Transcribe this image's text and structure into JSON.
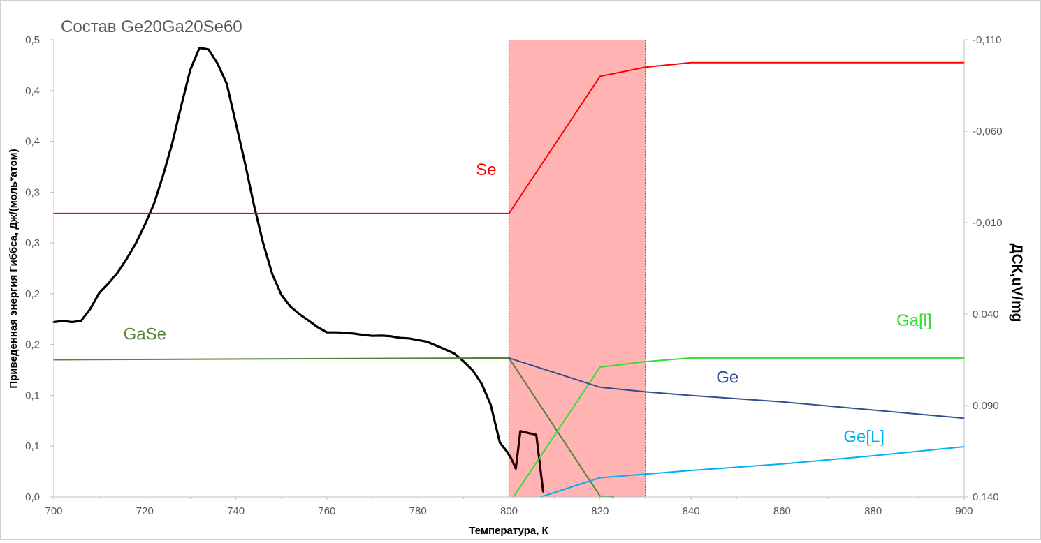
{
  "chart_data": {
    "type": "line",
    "title": "Состав Ge20Ga20Se60",
    "xlabel": "Температура, К",
    "ylabel": "Приведенная энергия Гиббса, Дж/(моль*атом)",
    "y2label": "ДСК,uV/mg",
    "xlim": [
      700,
      900
    ],
    "ylim": [
      0,
      0.5
    ],
    "y2lim": [
      -0.11,
      0.14
    ],
    "y2_reversed": true,
    "x_ticks": [
      "700",
      "720",
      "740",
      "760",
      "780",
      "800",
      "820",
      "840",
      "860",
      "880",
      "900"
    ],
    "y_tick_labels": [
      "0,0",
      "0,1",
      "0,1",
      "0,2",
      "0,2",
      "0,3",
      "0,3",
      "0,4",
      "0,4",
      "0,5"
    ],
    "y2_tick_labels": [
      "-0,110",
      "-0,060",
      "-0,010",
      "0,040",
      "0,090",
      "0,140"
    ],
    "grid": false,
    "shaded_region": {
      "x": [
        800,
        830
      ],
      "color": "#ffb3b3"
    },
    "series": [
      {
        "name": "Se",
        "color": "#ff0000",
        "axis": "left",
        "x": [
          700,
          800,
          820,
          830,
          840,
          900
        ],
        "y": [
          0.31,
          0.31,
          0.46,
          0.47,
          0.475,
          0.475
        ]
      },
      {
        "name": "GaSe",
        "color": "#548235",
        "axis": "left",
        "x": [
          700,
          800,
          820,
          823
        ],
        "y": [
          0.15,
          0.152,
          0.001,
          0.0
        ]
      },
      {
        "name": "Ga[l]",
        "color": "#33dd33",
        "axis": "left",
        "x": [
          801,
          820,
          830,
          840,
          900
        ],
        "y": [
          0.0,
          0.142,
          0.148,
          0.152,
          0.152
        ]
      },
      {
        "name": "Ge",
        "color": "#2f4f8f",
        "axis": "left",
        "x": [
          800,
          820,
          830,
          840,
          860,
          880,
          900
        ],
        "y": [
          0.152,
          0.12,
          0.115,
          0.111,
          0.104,
          0.095,
          0.086
        ]
      },
      {
        "name": "Ge[L]",
        "color": "#00b0f0",
        "axis": "left",
        "x": [
          807,
          820,
          830,
          840,
          860,
          880,
          900
        ],
        "y": [
          0.0,
          0.021,
          0.025,
          0.029,
          0.036,
          0.045,
          0.055
        ]
      },
      {
        "name": "",
        "color": "#000000",
        "axis": "right",
        "x": [
          700,
          702,
          704,
          706,
          708,
          710,
          712,
          714,
          716,
          718,
          720,
          722,
          724,
          726,
          728,
          730,
          732,
          734,
          736,
          738,
          740,
          742,
          744,
          746,
          748,
          750,
          752,
          754,
          756,
          758,
          760,
          762,
          764,
          766,
          768,
          770,
          772,
          774,
          776,
          778,
          780,
          782,
          784,
          786,
          788,
          790,
          792,
          794,
          796,
          797,
          798,
          799.5,
          800.5
        ],
        "y": [
          0.0444,
          0.0437,
          0.0444,
          0.0437,
          0.0372,
          0.0284,
          0.0232,
          0.0174,
          0.0099,
          0.0014,
          -0.0088,
          -0.0202,
          -0.0358,
          -0.0532,
          -0.0739,
          -0.0936,
          -0.1056,
          -0.1047,
          -0.0969,
          -0.0859,
          -0.0643,
          -0.0427,
          -0.0192,
          0.0013,
          0.0181,
          0.0295,
          0.0359,
          0.0401,
          0.0436,
          0.0472,
          0.05,
          0.05,
          0.0502,
          0.0507,
          0.0514,
          0.0519,
          0.0518,
          0.0521,
          0.053,
          0.0533,
          0.0542,
          0.0551,
          0.0572,
          0.0593,
          0.0616,
          0.0658,
          0.0707,
          0.0781,
          0.0896,
          0.1,
          0.1103,
          0.115,
          0.119
        ]
      },
      {
        "name": "",
        "color": "#2b0000",
        "axis": "right",
        "x": [
          800.5,
          801.5,
          802.5,
          804.5,
          806,
          807.5
        ],
        "y": [
          0.119,
          0.1245,
          0.104,
          0.1052,
          0.106,
          0.137
        ]
      }
    ],
    "annotations": [
      {
        "text": "Se",
        "x": 795,
        "y": 0.352,
        "color": "#ff0000"
      },
      {
        "text": "GaSe",
        "x": 720,
        "y": 0.172,
        "color": "#548235"
      },
      {
        "text": "Ga[l]",
        "x": 889,
        "y": 0.187,
        "color": "#33dd33"
      },
      {
        "text": "Ge",
        "x": 848,
        "y": 0.125,
        "color": "#2f4f8f"
      },
      {
        "text": "Ge[L]",
        "x": 878,
        "y": 0.06,
        "color": "#00b0f0"
      }
    ]
  }
}
